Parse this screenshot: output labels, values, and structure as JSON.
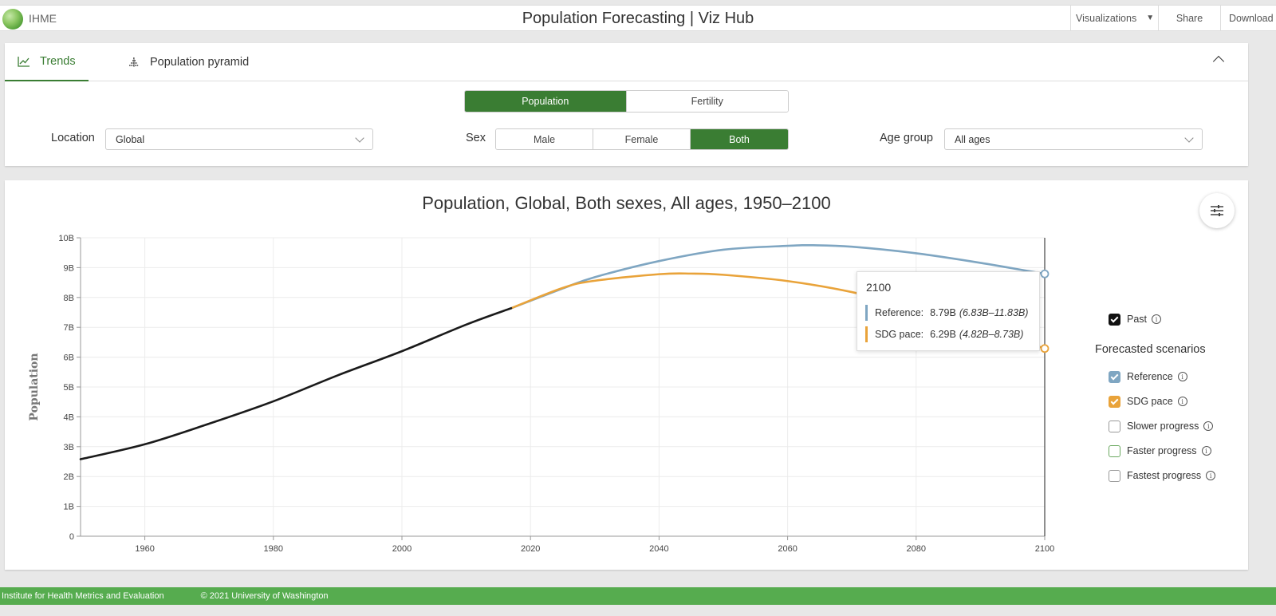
{
  "header": {
    "logo_text": "IHME",
    "title": "Population Forecasting | Viz Hub",
    "menu_visualizations": "Visualizations",
    "menu_share": "Share",
    "menu_download": "Download"
  },
  "tabs": [
    {
      "label": "Trends",
      "active": true,
      "icon": "line-chart-icon"
    },
    {
      "label": "Population pyramid",
      "active": false,
      "icon": "pyramid-icon"
    }
  ],
  "measure": {
    "options": [
      "Population",
      "Fertility"
    ],
    "selected": "Population"
  },
  "filters": {
    "location_label": "Location",
    "location_value": "Global",
    "sex_label": "Sex",
    "sex_options": [
      "Male",
      "Female",
      "Both"
    ],
    "sex_selected": "Both",
    "age_label": "Age group",
    "age_value": "All ages"
  },
  "colors": {
    "accent": "#3a7d33",
    "past": "#1a1a1a",
    "reference": "#7fa6c2",
    "sdg": "#e9a33a",
    "footer": "#56ac4f"
  },
  "chart_data": {
    "type": "line",
    "title": "Population, Global, Both sexes, All ages, 1950–2100",
    "ylabel": "Population",
    "xlabel": "",
    "xlim": [
      1950,
      2100
    ],
    "ylim": [
      0,
      10
    ],
    "x_ticks": [
      1960,
      1980,
      2000,
      2020,
      2040,
      2060,
      2080,
      2100
    ],
    "y_ticks": [
      "0",
      "1B",
      "2B",
      "3B",
      "4B",
      "5B",
      "6B",
      "7B",
      "8B",
      "9B",
      "10B"
    ],
    "grid": true,
    "series": [
      {
        "name": "Past",
        "color": "#1a1a1a",
        "x": [
          1950,
          1960,
          1970,
          1980,
          1990,
          2000,
          2010,
          2017
        ],
        "y": [
          2.58,
          3.08,
          3.77,
          4.52,
          5.39,
          6.2,
          7.09,
          7.64
        ]
      },
      {
        "name": "Reference",
        "color": "#7fa6c2",
        "x": [
          2017,
          2025,
          2030,
          2040,
          2050,
          2060,
          2064,
          2070,
          2080,
          2090,
          2100
        ],
        "y": [
          7.64,
          8.3,
          8.68,
          9.22,
          9.6,
          9.73,
          9.75,
          9.7,
          9.48,
          9.16,
          8.79
        ]
      },
      {
        "name": "SDG pace",
        "color": "#e9a33a",
        "x": [
          2017,
          2025,
          2030,
          2040,
          2045,
          2050,
          2060,
          2070,
          2080,
          2090,
          2100
        ],
        "y": [
          7.64,
          8.32,
          8.56,
          8.78,
          8.8,
          8.76,
          8.55,
          8.18,
          7.62,
          6.96,
          6.29
        ]
      }
    ],
    "hover_year": 2100
  },
  "tooltip": {
    "year": "2100",
    "reference_label": "Reference:",
    "reference_value": "8.79B",
    "reference_ci": "(6.83B–11.83B)",
    "sdg_label": "SDG pace:",
    "sdg_value": "6.29B",
    "sdg_ci": "(4.82B–8.73B)"
  },
  "legend": {
    "past_label": "Past",
    "past_checked": true,
    "forecast_heading": "Forecasted scenarios",
    "scenarios": [
      {
        "label": "Reference",
        "checked": true
      },
      {
        "label": "SDG pace",
        "checked": true
      },
      {
        "label": "Slower progress",
        "checked": false
      },
      {
        "label": "Faster progress",
        "checked": false
      },
      {
        "label": "Fastest progress",
        "checked": false
      }
    ]
  },
  "footer": {
    "org": "Institute for Health Metrics and Evaluation",
    "copyright": "© 2021 University of Washington"
  }
}
